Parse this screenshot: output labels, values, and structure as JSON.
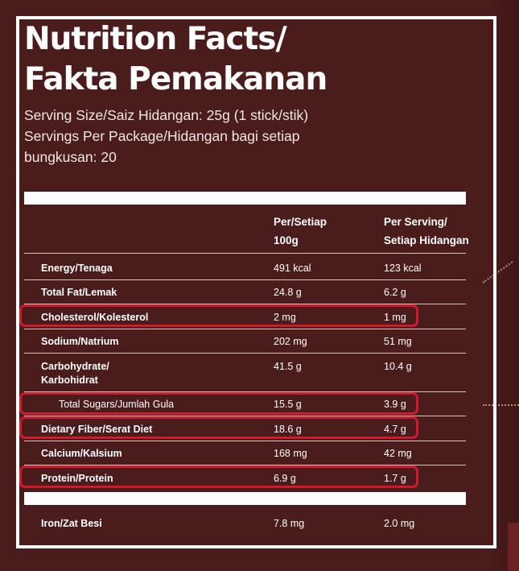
{
  "title": {
    "line1": "Nutrition Facts/",
    "line2": "Fakta Pemakanan"
  },
  "serving": {
    "size": "Serving Size/Saiz Hidangan: 25g (1 stick/stik)",
    "per_package_line1": "Servings Per Package/Hidangan bagi setiap",
    "per_package_line2": "bungkusan: 20"
  },
  "table": {
    "col_per100_line1": "Per/Setiap",
    "col_per100_line2": "100g",
    "col_serving_line1": "Per Serving/",
    "col_serving_line2": "Setiap Hidangan",
    "rows": [
      {
        "name": "Energy/Tenaga",
        "per100": "491 kcal",
        "serving": "123 kcal"
      },
      {
        "name": "Total Fat/Lemak",
        "per100": "24.8 g",
        "serving": "6.2 g"
      },
      {
        "name": "Cholesterol/Kolesterol",
        "per100": "2 mg",
        "serving": "1 mg"
      },
      {
        "name": "Sodium/Natrium",
        "per100": "202 mg",
        "serving": "51 mg"
      },
      {
        "name_line1": "Carbohydrate/",
        "name_line2": "Karbohidrat",
        "per100": "41.5 g",
        "serving": "10.4 g"
      },
      {
        "name": "Total Sugars/Jumlah Gula",
        "per100": "15.5 g",
        "serving": "3.9 g"
      },
      {
        "name": "Dietary Fiber/Serat Diet",
        "per100": "18.6 g",
        "serving": "4.7 g"
      },
      {
        "name": "Calcium/Kalsium",
        "per100": "168 mg",
        "serving": "42 mg"
      },
      {
        "name": "Protein/Protein",
        "per100": "6.9 g",
        "serving": "1.7 g"
      },
      {
        "name": "Iron/Zat Besi",
        "per100": "7.8 mg",
        "serving": "2.0 mg"
      }
    ]
  },
  "colors": {
    "background": "#4b1c1c",
    "highlight_border": "#d11b2c",
    "text": "#ffffff"
  }
}
